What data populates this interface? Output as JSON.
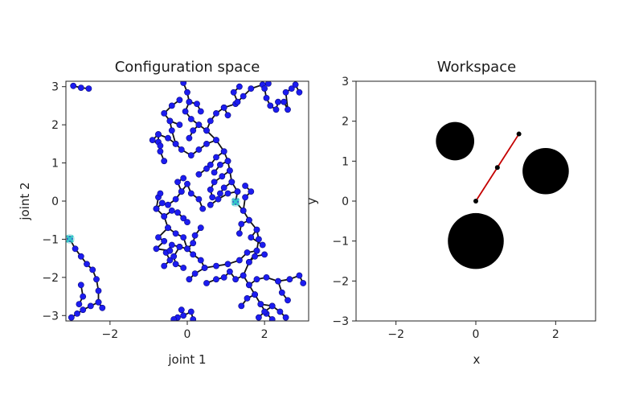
{
  "chart_data": [
    {
      "type": "scatter",
      "title": "Configuration space",
      "xlabel": "joint 1",
      "ylabel": "joint 2",
      "xlim": [
        -3.14159,
        3.14159
      ],
      "ylim": [
        -3.14159,
        3.14159
      ],
      "xticks": [
        -2,
        0,
        2
      ],
      "yticks": [
        -3,
        -2,
        -1,
        0,
        1,
        2,
        3
      ],
      "grid": false,
      "colors": {
        "node": "#1c1cf0",
        "edge": "#111111",
        "marker": "#34c7c7"
      },
      "markers": [
        [
          -3.04,
          -0.99
        ],
        [
          1.25,
          -0.02
        ]
      ],
      "paths": [
        [
          [
            -2.95,
            3.02
          ],
          [
            -2.75,
            2.97
          ],
          [
            -2.55,
            2.95
          ]
        ],
        [
          [
            -3.04,
            -0.99
          ],
          [
            -2.9,
            -1.25
          ],
          [
            -2.75,
            -1.45
          ],
          [
            -2.6,
            -1.65
          ],
          [
            -2.45,
            -1.8
          ],
          [
            -2.35,
            -2.05
          ],
          [
            -2.3,
            -2.35
          ],
          [
            -2.3,
            -2.65
          ],
          [
            -2.5,
            -2.75
          ],
          [
            -2.7,
            -2.85
          ],
          [
            -2.85,
            -2.95
          ],
          [
            -3.0,
            -3.05
          ]
        ],
        [
          [
            -2.3,
            -2.65
          ],
          [
            -2.2,
            -2.8
          ]
        ],
        [
          [
            -2.75,
            -2.2
          ],
          [
            -2.7,
            -2.5
          ],
          [
            -2.8,
            -2.7
          ]
        ],
        [
          [
            -0.1,
            3.1
          ],
          [
            0.0,
            2.85
          ],
          [
            0.05,
            2.6
          ],
          [
            -0.05,
            2.35
          ],
          [
            0.1,
            2.15
          ],
          [
            0.3,
            2.0
          ],
          [
            0.5,
            1.85
          ],
          [
            0.75,
            1.6
          ],
          [
            0.95,
            1.3
          ],
          [
            1.05,
            1.05
          ],
          [
            1.1,
            0.8
          ],
          [
            1.15,
            0.5
          ],
          [
            1.3,
            0.25
          ],
          [
            1.25,
            -0.02
          ],
          [
            1.45,
            -0.25
          ],
          [
            1.6,
            -0.5
          ],
          [
            1.8,
            -0.75
          ],
          [
            1.85,
            -1.0
          ],
          [
            1.8,
            -1.3
          ],
          [
            1.6,
            -1.6
          ],
          [
            1.45,
            -1.95
          ],
          [
            1.6,
            -2.2
          ],
          [
            1.75,
            -2.45
          ],
          [
            1.9,
            -2.7
          ],
          [
            2.05,
            -2.95
          ],
          [
            2.2,
            -3.1
          ]
        ],
        [
          [
            0.05,
            2.6
          ],
          [
            0.25,
            2.55
          ],
          [
            0.35,
            2.35
          ]
        ],
        [
          [
            0.3,
            2.0
          ],
          [
            0.15,
            1.85
          ],
          [
            0.05,
            1.65
          ]
        ],
        [
          [
            0.5,
            1.85
          ],
          [
            0.6,
            2.1
          ],
          [
            0.75,
            2.3
          ],
          [
            0.95,
            2.45
          ],
          [
            1.05,
            2.25
          ]
        ],
        [
          [
            0.95,
            2.45
          ],
          [
            1.25,
            2.55
          ],
          [
            1.45,
            2.75
          ],
          [
            1.65,
            2.95
          ],
          [
            1.95,
            3.05
          ],
          [
            2.1,
            3.08
          ]
        ],
        [
          [
            1.3,
            2.6
          ],
          [
            1.2,
            2.85
          ],
          [
            1.35,
            3.0
          ]
        ],
        [
          [
            0.75,
            1.6
          ],
          [
            0.5,
            1.5
          ],
          [
            0.3,
            1.35
          ],
          [
            0.1,
            1.2
          ],
          [
            -0.15,
            1.35
          ],
          [
            -0.3,
            1.5
          ],
          [
            -0.5,
            1.65
          ],
          [
            -0.75,
            1.75
          ],
          [
            -0.75,
            1.55
          ],
          [
            -0.7,
            1.3
          ],
          [
            -0.6,
            1.05
          ]
        ],
        [
          [
            -0.3,
            1.5
          ],
          [
            -0.4,
            1.85
          ],
          [
            -0.45,
            2.1
          ],
          [
            -0.6,
            2.3
          ],
          [
            -0.4,
            2.5
          ],
          [
            -0.2,
            2.65
          ]
        ],
        [
          [
            -0.45,
            2.1
          ],
          [
            -0.2,
            2.0
          ]
        ],
        [
          [
            -0.75,
            1.75
          ],
          [
            -0.9,
            1.6
          ],
          [
            -0.7,
            1.45
          ]
        ],
        [
          [
            0.95,
            1.3
          ],
          [
            0.75,
            1.15
          ],
          [
            0.6,
            0.95
          ],
          [
            0.5,
            0.85
          ],
          [
            0.3,
            0.7
          ]
        ],
        [
          [
            1.05,
            1.05
          ],
          [
            0.85,
            0.95
          ],
          [
            0.7,
            0.75
          ]
        ],
        [
          [
            1.1,
            0.8
          ],
          [
            0.9,
            0.65
          ],
          [
            0.7,
            0.5
          ],
          [
            0.6,
            0.3
          ],
          [
            0.65,
            0.1
          ]
        ],
        [
          [
            1.15,
            0.5
          ],
          [
            0.95,
            0.35
          ],
          [
            0.85,
            0.2
          ]
        ],
        [
          [
            1.3,
            0.25
          ],
          [
            1.05,
            0.2
          ],
          [
            0.8,
            0.05
          ],
          [
            0.6,
            -0.1
          ]
        ],
        [
          [
            1.45,
            -0.25
          ],
          [
            1.5,
            0.1
          ],
          [
            1.65,
            0.25
          ],
          [
            1.5,
            0.4
          ]
        ],
        [
          [
            1.6,
            -0.5
          ],
          [
            1.4,
            -0.6
          ],
          [
            1.35,
            -0.85
          ]
        ],
        [
          [
            1.8,
            -0.75
          ],
          [
            1.65,
            -0.95
          ],
          [
            1.95,
            -1.15
          ]
        ],
        [
          [
            1.8,
            -1.3
          ],
          [
            1.55,
            -1.35
          ],
          [
            1.35,
            -1.55
          ],
          [
            1.05,
            -1.65
          ],
          [
            0.75,
            -1.7
          ],
          [
            0.45,
            -1.75
          ],
          [
            0.2,
            -1.9
          ],
          [
            0.05,
            -2.05
          ]
        ],
        [
          [
            1.6,
            -1.6
          ],
          [
            1.75,
            -1.45
          ],
          [
            2.0,
            -1.4
          ]
        ],
        [
          [
            1.45,
            -1.95
          ],
          [
            1.25,
            -2.05
          ],
          [
            1.1,
            -1.85
          ],
          [
            0.95,
            -2.0
          ],
          [
            0.75,
            -2.05
          ],
          [
            0.5,
            -2.15
          ]
        ],
        [
          [
            1.6,
            -2.2
          ],
          [
            1.8,
            -2.05
          ],
          [
            2.05,
            -2.0
          ],
          [
            2.35,
            -2.1
          ],
          [
            2.65,
            -2.05
          ],
          [
            2.9,
            -1.95
          ],
          [
            3.0,
            -2.15
          ]
        ],
        [
          [
            2.35,
            -2.1
          ],
          [
            2.45,
            -2.4
          ],
          [
            2.6,
            -2.6
          ]
        ],
        [
          [
            1.75,
            -2.45
          ],
          [
            1.55,
            -2.55
          ],
          [
            1.4,
            -2.75
          ]
        ],
        [
          [
            1.9,
            -2.7
          ],
          [
            2.2,
            -2.75
          ],
          [
            2.4,
            -2.9
          ],
          [
            2.55,
            -3.05
          ]
        ],
        [
          [
            2.2,
            -2.75
          ],
          [
            2.0,
            -2.9
          ],
          [
            1.85,
            -3.05
          ]
        ],
        [
          [
            0.45,
            -1.75
          ],
          [
            0.35,
            -1.55
          ],
          [
            0.15,
            -1.4
          ],
          [
            0.0,
            -1.25
          ],
          [
            -0.2,
            -1.2
          ],
          [
            -0.4,
            -1.15
          ],
          [
            -0.55,
            -1.35
          ],
          [
            -0.45,
            -1.55
          ],
          [
            -0.6,
            -1.7
          ]
        ],
        [
          [
            0.0,
            -1.25
          ],
          [
            -0.1,
            -0.95
          ],
          [
            -0.3,
            -0.85
          ],
          [
            -0.5,
            -0.7
          ],
          [
            -0.6,
            -0.4
          ],
          [
            -0.8,
            -0.2
          ],
          [
            -0.75,
            0.1
          ],
          [
            -0.7,
            0.2
          ]
        ],
        [
          [
            -0.5,
            -0.7
          ],
          [
            -0.75,
            -0.95
          ],
          [
            -0.6,
            -1.05
          ],
          [
            -0.8,
            -1.25
          ],
          [
            -0.45,
            -1.3
          ]
        ],
        [
          [
            -0.6,
            -0.4
          ],
          [
            -0.4,
            -0.25
          ],
          [
            -0.25,
            -0.3
          ],
          [
            -0.1,
            -0.45
          ],
          [
            0.0,
            -0.55
          ]
        ],
        [
          [
            -0.8,
            -0.2
          ],
          [
            -0.65,
            -0.05
          ],
          [
            -0.5,
            -0.1
          ],
          [
            -0.3,
            0.05
          ],
          [
            -0.15,
            0.25
          ],
          [
            0.0,
            0.45
          ],
          [
            0.1,
            0.2
          ],
          [
            0.3,
            0.05
          ],
          [
            0.4,
            -0.2
          ]
        ],
        [
          [
            -0.15,
            0.25
          ],
          [
            -0.25,
            0.5
          ],
          [
            -0.1,
            0.6
          ]
        ],
        [
          [
            0.0,
            -1.25
          ],
          [
            0.15,
            -1.1
          ],
          [
            0.2,
            -0.9
          ],
          [
            0.35,
            -0.7
          ]
        ],
        [
          [
            -0.2,
            -1.2
          ],
          [
            -0.35,
            -1.45
          ],
          [
            -0.3,
            -1.65
          ],
          [
            -0.1,
            -1.75
          ]
        ],
        [
          [
            2.0,
            2.95
          ],
          [
            2.05,
            2.7
          ],
          [
            2.15,
            2.5
          ],
          [
            2.3,
            2.4
          ],
          [
            2.35,
            2.6
          ],
          [
            2.5,
            2.6
          ],
          [
            2.6,
            2.4
          ],
          [
            2.55,
            2.85
          ],
          [
            2.7,
            2.95
          ]
        ],
        [
          [
            2.8,
            3.05
          ],
          [
            2.9,
            2.85
          ]
        ],
        [
          [
            -0.15,
            -2.85
          ],
          [
            -0.1,
            -3.0
          ],
          [
            0.1,
            -2.9
          ],
          [
            0.15,
            -3.1
          ]
        ],
        [
          [
            -0.25,
            -3.05
          ],
          [
            -0.35,
            -3.1
          ]
        ]
      ]
    },
    {
      "type": "scatter",
      "title": "Workspace",
      "xlabel": "x",
      "ylabel": "y",
      "xlim": [
        -3,
        3
      ],
      "ylim": [
        -3,
        3
      ],
      "xticks": [
        -2,
        0,
        2
      ],
      "yticks": [
        -3,
        -2,
        -1,
        0,
        1,
        2,
        3
      ],
      "grid": false,
      "obstacles": [
        {
          "x": -0.52,
          "y": 1.5,
          "r": 0.48
        },
        {
          "x": 1.75,
          "y": 0.75,
          "r": 0.58
        },
        {
          "x": 0.0,
          "y": -1.0,
          "r": 0.7
        }
      ],
      "arm": [
        [
          0.0,
          0.0
        ],
        [
          0.54,
          0.84
        ],
        [
          1.08,
          1.68
        ]
      ],
      "colors": {
        "obstacle": "#000000",
        "link": "#c40000",
        "joint": "#000000"
      }
    }
  ]
}
